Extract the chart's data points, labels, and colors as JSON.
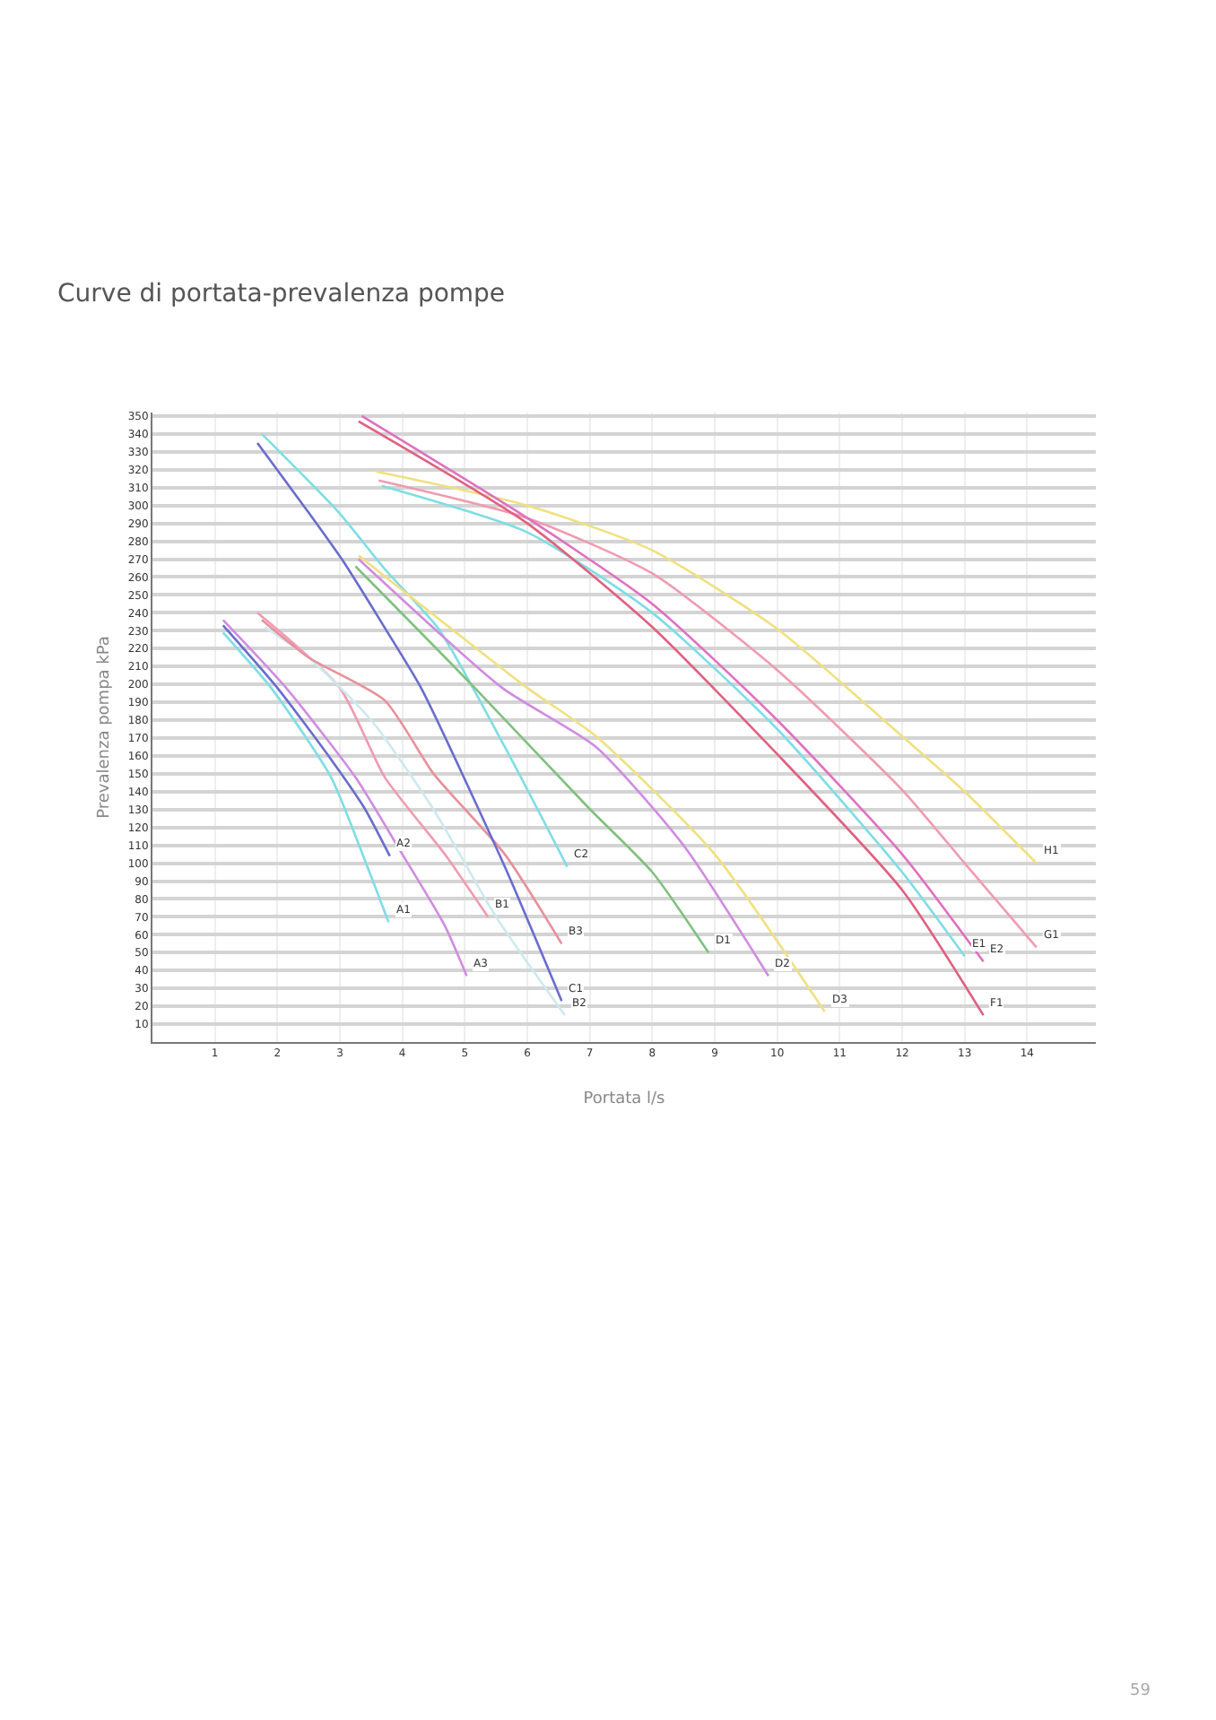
{
  "chart_data": {
    "type": "line",
    "title": "Curve di portata-prevalenza pompe",
    "xlabel": "Portata l/s",
    "ylabel": "Prevalenza pompa kPa",
    "xlim": [
      0,
      15.1
    ],
    "xticks": [
      1,
      2,
      3,
      4,
      5,
      6,
      7,
      8,
      9,
      10,
      11,
      12,
      13,
      14
    ],
    "ylim": [
      0,
      352
    ],
    "yticks": [
      10,
      20,
      30,
      40,
      50,
      60,
      70,
      80,
      90,
      100,
      110,
      120,
      130,
      140,
      150,
      160,
      170,
      180,
      190,
      200,
      210,
      220,
      230,
      240,
      250,
      260,
      270,
      280,
      290,
      300,
      310,
      320,
      330,
      340,
      350
    ],
    "grid": true,
    "legend": false,
    "marker": "none",
    "line_style": "solid",
    "series": [
      {
        "name": "A1",
        "color": "#7fdde4",
        "x": [
          1.13,
          1.9,
          2.86,
          3.44,
          3.78
        ],
        "values": [
          229,
          198,
          148,
          98,
          67
        ]
      },
      {
        "name": "A2",
        "color": "#6a6ccf",
        "x": [
          1.13,
          2.0,
          2.86,
          3.39,
          3.8
        ],
        "values": [
          233,
          198,
          158,
          131,
          104
        ]
      },
      {
        "name": "A3",
        "color": "#d08ce0",
        "x": [
          1.13,
          2.14,
          3.25,
          4.0,
          4.68,
          5.03
        ],
        "values": [
          236,
          198,
          148,
          105,
          65,
          37
        ]
      },
      {
        "name": "B1",
        "color": "#f09bb0",
        "x": [
          1.68,
          3.0,
          3.72,
          4.68,
          5.37
        ],
        "values": [
          240,
          198,
          148,
          105,
          70
        ]
      },
      {
        "name": "B2",
        "color": "#cde9ee",
        "x": [
          1.8,
          2.5,
          3.5,
          4.5,
          5.5,
          6.6
        ],
        "values": [
          232,
          215,
          180,
          130,
          70,
          15
        ]
      },
      {
        "name": "B3",
        "color": "#e8909c",
        "x": [
          1.75,
          2.5,
          3.72,
          4.5,
          5.64,
          6.55
        ],
        "values": [
          236,
          215,
          191,
          150,
          105,
          55
        ]
      },
      {
        "name": "C1",
        "color": "#6a6ccf",
        "x": [
          1.68,
          2.48,
          3.05,
          3.73,
          4.3,
          5.64,
          6.55
        ],
        "values": [
          335,
          297,
          269,
          231,
          198,
          98,
          23
        ]
      },
      {
        "name": "C2",
        "color": "#7fdde4",
        "x": [
          1.75,
          2.96,
          3.73,
          4.58,
          5.64,
          6.64
        ],
        "values": [
          340,
          297,
          264,
          231,
          165,
          98
        ]
      },
      {
        "name": "D1",
        "color": "#80c080",
        "x": [
          3.25,
          5.16,
          6.98,
          8.0,
          8.9
        ],
        "values": [
          266,
          198,
          131,
          95,
          50
        ]
      },
      {
        "name": "D2",
        "color": "#d08ce0",
        "x": [
          3.3,
          5.6,
          7.1,
          8.5,
          9.86
        ],
        "values": [
          270,
          198,
          165,
          110,
          37
        ]
      },
      {
        "name": "D3",
        "color": "#f0e080",
        "x": [
          3.3,
          6.0,
          7.1,
          9.0,
          10.76
        ],
        "values": [
          272,
          198,
          171,
          105,
          17
        ]
      },
      {
        "name": "H1",
        "color": "#f0e080",
        "x": [
          3.58,
          6.0,
          8.0,
          10.0,
          12.0,
          13.0,
          14.15
        ],
        "values": [
          319,
          300,
          275,
          231,
          171,
          140,
          100
        ]
      },
      {
        "name": "G1",
        "color": "#f09bb0",
        "x": [
          3.62,
          6.0,
          8.0,
          10.0,
          12.0,
          13.0,
          14.15
        ],
        "values": [
          314,
          293,
          262,
          208,
          141,
          100,
          53
        ]
      },
      {
        "name": "E1",
        "color": "#7fdde4",
        "x": [
          3.67,
          6.0,
          8.0,
          10.0,
          12.0,
          13.0
        ],
        "values": [
          311,
          285,
          240,
          175,
          95,
          48
        ]
      },
      {
        "name": "E2",
        "color": "#e070c0",
        "x": [
          3.35,
          6.0,
          8.0,
          10.0,
          12.0,
          13.3
        ],
        "values": [
          350,
          293,
          245,
          180,
          105,
          45
        ]
      },
      {
        "name": "F1",
        "color": "#e06080",
        "x": [
          3.3,
          6.0,
          8.0,
          10.0,
          12.0,
          13.3
        ],
        "values": [
          347,
          290,
          232,
          161,
          85,
          15
        ]
      }
    ],
    "annotations": [
      "59"
    ]
  }
}
